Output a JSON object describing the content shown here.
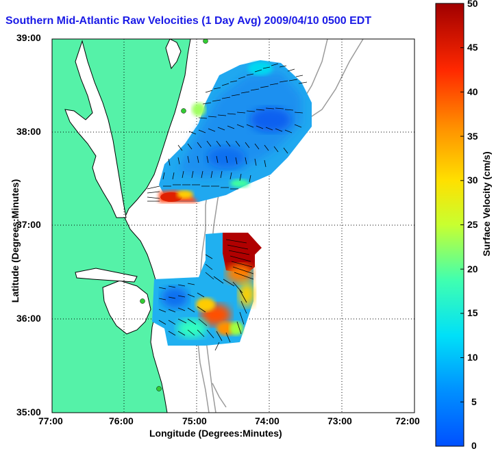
{
  "title": "Southern Mid-Atlantic Raw Velocities (1 Day Avg) 2009/04/10 0500 EDT",
  "axes": {
    "xlabel": "Longitude (Degrees:Minutes)",
    "ylabel": "Latitude (Degrees:Minutes)",
    "x_ticks": [
      "77:00",
      "76:00",
      "75:00",
      "74:00",
      "73:00",
      "72:00"
    ],
    "y_ticks": [
      "39:00",
      "38:00",
      "37:00",
      "36:00",
      "35:00"
    ]
  },
  "colorbar": {
    "label": "Surface Velocity (cm/s)",
    "ticks": [
      "50",
      "45",
      "40",
      "35",
      "30",
      "25",
      "20",
      "15",
      "10",
      "5",
      "0"
    ],
    "min": 0,
    "max": 50,
    "colors": [
      "#0050ff",
      "#00a0ff",
      "#00e8f0",
      "#40ffb0",
      "#c0ff40",
      "#ffe000",
      "#ff9000",
      "#ff3000",
      "#b00000"
    ]
  },
  "colors": {
    "land": "#55f2a8",
    "coastline": "#000000",
    "bathymetry": "#9a9a9a",
    "grid": "#000000",
    "title": "#1a1ae6",
    "stations": "#33cc33"
  },
  "map": {
    "lon_range": [
      -77,
      -72
    ],
    "lat_range": [
      35,
      39
    ],
    "grid": true
  }
}
